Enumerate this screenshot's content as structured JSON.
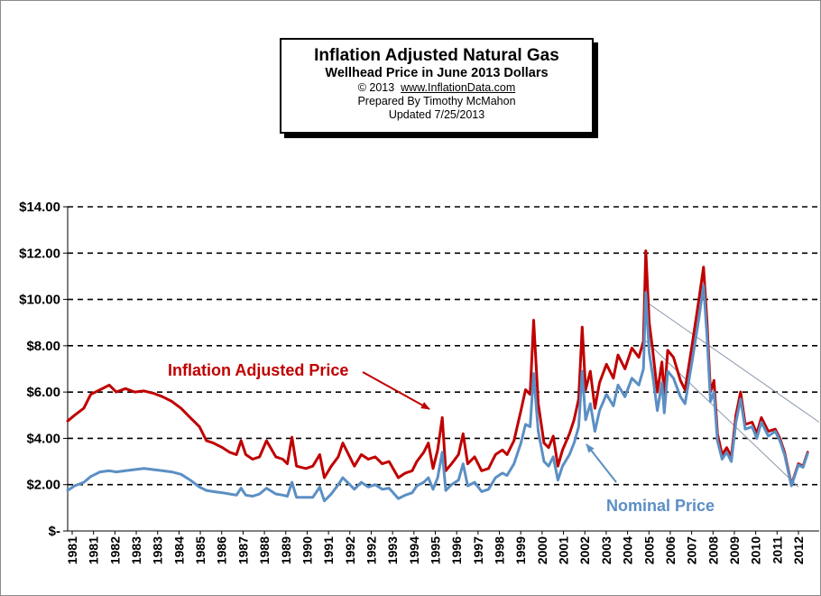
{
  "title": {
    "line1": "Inflation  Adjusted  Natural  Gas",
    "line2": "Wellhead Price in June 2013 Dollars",
    "copyright": "© 2013",
    "website": "www.InflationData.com",
    "prepared": "Prepared  By Timothy McMahon",
    "updated": "Updated   7/25/2013"
  },
  "chart_data": {
    "type": "line",
    "ylim": [
      0,
      14
    ],
    "y_ticks": [
      {
        "value": 0,
        "label": "$-"
      },
      {
        "value": 2,
        "label": "$2.00"
      },
      {
        "value": 4,
        "label": "$4.00"
      },
      {
        "value": 6,
        "label": "$6.00"
      },
      {
        "value": 8,
        "label": "$8.00"
      },
      {
        "value": 10,
        "label": "$10.00"
      },
      {
        "value": 12,
        "label": "$12.00"
      },
      {
        "value": 14,
        "label": "$14.00"
      }
    ],
    "grid": "horizontal dashed",
    "x_range": [
      1981.0,
      2013.5
    ],
    "x_tick_labels": [
      "1981",
      "1981",
      "1982",
      "1983",
      "1983",
      "1984",
      "1985",
      "1986",
      "1987",
      "1988",
      "1989",
      "1990",
      "1991",
      "1992",
      "1992",
      "1993",
      "1994",
      "1995",
      "1996",
      "1997",
      "1998",
      "1999",
      "2000",
      "2001",
      "2002",
      "2003",
      "2004",
      "2005",
      "2006",
      "2007",
      "2008",
      "2009",
      "2010",
      "2011",
      "2012"
    ],
    "series": [
      {
        "name": "Inflation Adjusted Price",
        "color": "#c00000",
        "points": [
          [
            1981.0,
            4.75
          ],
          [
            1981.3,
            5.0
          ],
          [
            1981.7,
            5.3
          ],
          [
            1982.0,
            5.9
          ],
          [
            1982.4,
            6.1
          ],
          [
            1982.8,
            6.3
          ],
          [
            1983.1,
            6.0
          ],
          [
            1983.5,
            6.15
          ],
          [
            1983.9,
            6.0
          ],
          [
            1984.3,
            6.05
          ],
          [
            1984.7,
            5.95
          ],
          [
            1985.1,
            5.8
          ],
          [
            1985.5,
            5.6
          ],
          [
            1985.9,
            5.3
          ],
          [
            1986.3,
            4.9
          ],
          [
            1986.7,
            4.5
          ],
          [
            1987.0,
            3.9
          ],
          [
            1987.3,
            3.8
          ],
          [
            1987.7,
            3.6
          ],
          [
            1988.0,
            3.4
          ],
          [
            1988.3,
            3.3
          ],
          [
            1988.5,
            3.9
          ],
          [
            1988.7,
            3.3
          ],
          [
            1989.0,
            3.1
          ],
          [
            1989.3,
            3.2
          ],
          [
            1989.6,
            3.9
          ],
          [
            1990.0,
            3.2
          ],
          [
            1990.3,
            3.1
          ],
          [
            1990.5,
            2.9
          ],
          [
            1990.7,
            4.05
          ],
          [
            1990.9,
            2.8
          ],
          [
            1991.3,
            2.7
          ],
          [
            1991.6,
            2.8
          ],
          [
            1991.9,
            3.3
          ],
          [
            1992.1,
            2.3
          ],
          [
            1992.4,
            2.8
          ],
          [
            1992.7,
            3.2
          ],
          [
            1992.9,
            3.8
          ],
          [
            1993.1,
            3.4
          ],
          [
            1993.4,
            2.8
          ],
          [
            1993.7,
            3.3
          ],
          [
            1994.0,
            3.1
          ],
          [
            1994.3,
            3.2
          ],
          [
            1994.6,
            2.9
          ],
          [
            1994.9,
            3.0
          ],
          [
            1995.3,
            2.3
          ],
          [
            1995.6,
            2.5
          ],
          [
            1995.9,
            2.6
          ],
          [
            1996.1,
            3.0
          ],
          [
            1996.4,
            3.4
          ],
          [
            1996.6,
            3.8
          ],
          [
            1996.8,
            2.7
          ],
          [
            1997.0,
            3.5
          ],
          [
            1997.2,
            4.9
          ],
          [
            1997.35,
            2.6
          ],
          [
            1997.6,
            2.9
          ],
          [
            1997.9,
            3.3
          ],
          [
            1998.1,
            4.2
          ],
          [
            1998.3,
            2.9
          ],
          [
            1998.6,
            3.2
          ],
          [
            1998.9,
            2.6
          ],
          [
            1999.2,
            2.7
          ],
          [
            1999.5,
            3.3
          ],
          [
            1999.8,
            3.5
          ],
          [
            2000.0,
            3.3
          ],
          [
            2000.3,
            3.9
          ],
          [
            2000.6,
            5.2
          ],
          [
            2000.8,
            6.1
          ],
          [
            2001.0,
            5.9
          ],
          [
            2001.15,
            9.1
          ],
          [
            2001.35,
            5.5
          ],
          [
            2001.6,
            3.8
          ],
          [
            2001.8,
            3.6
          ],
          [
            2002.0,
            4.1
          ],
          [
            2002.2,
            2.8
          ],
          [
            2002.4,
            3.5
          ],
          [
            2002.7,
            4.2
          ],
          [
            2002.9,
            4.8
          ],
          [
            2003.1,
            5.7
          ],
          [
            2003.25,
            8.8
          ],
          [
            2003.4,
            6.1
          ],
          [
            2003.6,
            6.9
          ],
          [
            2003.8,
            5.3
          ],
          [
            2004.0,
            6.4
          ],
          [
            2004.3,
            7.2
          ],
          [
            2004.6,
            6.6
          ],
          [
            2004.8,
            7.6
          ],
          [
            2005.1,
            7.0
          ],
          [
            2005.4,
            7.9
          ],
          [
            2005.7,
            7.5
          ],
          [
            2005.9,
            8.2
          ],
          [
            2006.0,
            12.1
          ],
          [
            2006.15,
            9.0
          ],
          [
            2006.3,
            7.8
          ],
          [
            2006.5,
            6.0
          ],
          [
            2006.7,
            7.3
          ],
          [
            2006.8,
            5.8
          ],
          [
            2006.95,
            7.8
          ],
          [
            2007.2,
            7.5
          ],
          [
            2007.5,
            6.5
          ],
          [
            2007.7,
            6.1
          ],
          [
            2008.0,
            8.0
          ],
          [
            2008.3,
            10.0
          ],
          [
            2008.5,
            11.4
          ],
          [
            2008.65,
            9.0
          ],
          [
            2008.8,
            6.0
          ],
          [
            2008.95,
            6.5
          ],
          [
            2009.1,
            4.2
          ],
          [
            2009.3,
            3.3
          ],
          [
            2009.5,
            3.6
          ],
          [
            2009.7,
            3.2
          ],
          [
            2009.9,
            5.0
          ],
          [
            2010.1,
            6.0
          ],
          [
            2010.3,
            4.6
          ],
          [
            2010.6,
            4.7
          ],
          [
            2010.8,
            4.2
          ],
          [
            2011.0,
            4.9
          ],
          [
            2011.3,
            4.3
          ],
          [
            2011.6,
            4.4
          ],
          [
            2011.8,
            4.0
          ],
          [
            2012.0,
            3.4
          ],
          [
            2012.3,
            2.0
          ],
          [
            2012.6,
            2.9
          ],
          [
            2012.8,
            2.8
          ],
          [
            2013.0,
            3.4
          ]
        ]
      },
      {
        "name": "Nominal Price",
        "color": "#5b8fc4",
        "points": [
          [
            1981.0,
            1.75
          ],
          [
            1981.3,
            1.95
          ],
          [
            1981.7,
            2.1
          ],
          [
            1982.0,
            2.35
          ],
          [
            1982.4,
            2.55
          ],
          [
            1982.8,
            2.6
          ],
          [
            1983.1,
            2.55
          ],
          [
            1983.5,
            2.6
          ],
          [
            1983.9,
            2.65
          ],
          [
            1984.3,
            2.7
          ],
          [
            1984.7,
            2.65
          ],
          [
            1985.1,
            2.6
          ],
          [
            1985.5,
            2.55
          ],
          [
            1985.9,
            2.45
          ],
          [
            1986.3,
            2.2
          ],
          [
            1986.7,
            1.9
          ],
          [
            1987.0,
            1.75
          ],
          [
            1987.3,
            1.7
          ],
          [
            1987.7,
            1.65
          ],
          [
            1988.0,
            1.6
          ],
          [
            1988.3,
            1.55
          ],
          [
            1988.5,
            1.85
          ],
          [
            1988.7,
            1.55
          ],
          [
            1989.0,
            1.5
          ],
          [
            1989.3,
            1.6
          ],
          [
            1989.6,
            1.85
          ],
          [
            1990.0,
            1.6
          ],
          [
            1990.3,
            1.55
          ],
          [
            1990.5,
            1.5
          ],
          [
            1990.7,
            2.1
          ],
          [
            1990.9,
            1.45
          ],
          [
            1991.3,
            1.45
          ],
          [
            1991.6,
            1.45
          ],
          [
            1991.9,
            1.9
          ],
          [
            1992.1,
            1.3
          ],
          [
            1992.4,
            1.6
          ],
          [
            1992.7,
            2.0
          ],
          [
            1992.9,
            2.3
          ],
          [
            1993.1,
            2.1
          ],
          [
            1993.4,
            1.8
          ],
          [
            1993.7,
            2.1
          ],
          [
            1994.0,
            1.9
          ],
          [
            1994.3,
            2.0
          ],
          [
            1994.6,
            1.8
          ],
          [
            1994.9,
            1.85
          ],
          [
            1995.3,
            1.4
          ],
          [
            1995.6,
            1.55
          ],
          [
            1995.9,
            1.65
          ],
          [
            1996.1,
            1.95
          ],
          [
            1996.4,
            2.1
          ],
          [
            1996.6,
            2.3
          ],
          [
            1996.8,
            1.8
          ],
          [
            1997.0,
            2.3
          ],
          [
            1997.2,
            3.4
          ],
          [
            1997.35,
            1.75
          ],
          [
            1997.6,
            2.0
          ],
          [
            1997.9,
            2.2
          ],
          [
            1998.1,
            2.9
          ],
          [
            1998.3,
            1.95
          ],
          [
            1998.6,
            2.1
          ],
          [
            1998.9,
            1.7
          ],
          [
            1999.2,
            1.8
          ],
          [
            1999.5,
            2.3
          ],
          [
            1999.8,
            2.5
          ],
          [
            2000.0,
            2.4
          ],
          [
            2000.3,
            2.9
          ],
          [
            2000.6,
            3.8
          ],
          [
            2000.8,
            4.6
          ],
          [
            2001.0,
            4.5
          ],
          [
            2001.15,
            6.8
          ],
          [
            2001.35,
            4.3
          ],
          [
            2001.6,
            3.0
          ],
          [
            2001.8,
            2.8
          ],
          [
            2002.0,
            3.2
          ],
          [
            2002.2,
            2.2
          ],
          [
            2002.4,
            2.8
          ],
          [
            2002.7,
            3.3
          ],
          [
            2002.9,
            3.8
          ],
          [
            2003.1,
            4.5
          ],
          [
            2003.25,
            6.9
          ],
          [
            2003.4,
            4.8
          ],
          [
            2003.6,
            5.5
          ],
          [
            2003.8,
            4.3
          ],
          [
            2004.0,
            5.2
          ],
          [
            2004.3,
            5.9
          ],
          [
            2004.6,
            5.4
          ],
          [
            2004.8,
            6.3
          ],
          [
            2005.1,
            5.8
          ],
          [
            2005.4,
            6.6
          ],
          [
            2005.7,
            6.3
          ],
          [
            2005.9,
            7.0
          ],
          [
            2006.0,
            10.3
          ],
          [
            2006.15,
            7.7
          ],
          [
            2006.3,
            6.7
          ],
          [
            2006.5,
            5.2
          ],
          [
            2006.7,
            6.4
          ],
          [
            2006.8,
            5.1
          ],
          [
            2006.95,
            6.9
          ],
          [
            2007.2,
            6.6
          ],
          [
            2007.5,
            5.8
          ],
          [
            2007.7,
            5.5
          ],
          [
            2008.0,
            7.3
          ],
          [
            2008.3,
            9.2
          ],
          [
            2008.5,
            10.6
          ],
          [
            2008.65,
            8.4
          ],
          [
            2008.8,
            5.6
          ],
          [
            2008.95,
            6.0
          ],
          [
            2009.1,
            3.9
          ],
          [
            2009.3,
            3.1
          ],
          [
            2009.5,
            3.4
          ],
          [
            2009.7,
            3.0
          ],
          [
            2009.9,
            4.7
          ],
          [
            2010.1,
            5.7
          ],
          [
            2010.3,
            4.4
          ],
          [
            2010.6,
            4.5
          ],
          [
            2010.8,
            4.0
          ],
          [
            2011.0,
            4.7
          ],
          [
            2011.3,
            4.1
          ],
          [
            2011.6,
            4.3
          ],
          [
            2011.8,
            3.9
          ],
          [
            2012.0,
            3.3
          ],
          [
            2012.3,
            1.95
          ],
          [
            2012.6,
            2.85
          ],
          [
            2012.8,
            2.75
          ],
          [
            2013.0,
            3.35
          ]
        ]
      }
    ],
    "annotations": [
      {
        "text": "Inflation Adjusted Price",
        "color": "#c00000"
      },
      {
        "text": "Nominal Price",
        "color": "#5b8fc4"
      }
    ],
    "trendlines": [
      {
        "from": [
          2006.15,
          9.8
        ],
        "to": [
          2013.5,
          4.7
        ]
      },
      {
        "from": [
          2005.9,
          8.3
        ],
        "to": [
          2012.6,
          1.9
        ]
      }
    ]
  }
}
